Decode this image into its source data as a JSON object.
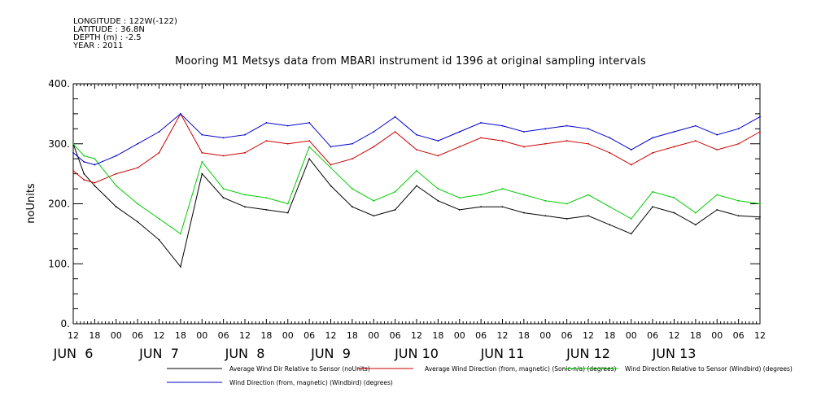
{
  "meta": {
    "longitude": "LONGITUDE : 122W(-122)",
    "latitude": "LATITUDE : 36.8N",
    "depth": "DEPTH (m) : -2.5",
    "year": "YEAR : 2011"
  },
  "chart_data": {
    "type": "line",
    "title": "Mooring M1 Metsys data from MBARI instrument id 1396 at original sampling intervals",
    "ylabel": "noUnits",
    "ylim": [
      0,
      400
    ],
    "yticks": [
      0,
      100,
      200,
      300,
      400
    ],
    "ytick_labels": [
      "0.",
      "100.",
      "200.",
      "300.",
      "400."
    ],
    "xlim_hours": [
      12,
      204
    ],
    "hour_tick_labels": [
      "12",
      "18",
      "00",
      "06",
      "12",
      "18",
      "00",
      "06",
      "12",
      "18",
      "00",
      "06",
      "12",
      "18",
      "00",
      "06",
      "12",
      "18",
      "00",
      "06",
      "12",
      "18",
      "00",
      "06",
      "12",
      "18",
      "00",
      "06",
      "12",
      "18",
      "00",
      "06",
      "12"
    ],
    "date_labels": [
      "JUN  6",
      "JUN  7",
      "JUN  8",
      "JUN  9",
      "JUN 10",
      "JUN 11",
      "JUN 12",
      "JUN 13"
    ],
    "x_unit": "hours since 2011-06-06 00:00",
    "x": [
      12,
      15,
      18,
      24,
      30,
      36,
      42,
      48,
      54,
      60,
      66,
      72,
      78,
      84,
      90,
      96,
      102,
      108,
      114,
      120,
      126,
      132,
      138,
      144,
      150,
      156,
      162,
      168,
      174,
      180,
      186,
      192,
      198,
      204
    ],
    "series": [
      {
        "name": "Average Wind Dir Relative to Sensor (noUnits)",
        "color": "#000000",
        "values": [
          300,
          250,
          230,
          195,
          170,
          140,
          95,
          250,
          210,
          195,
          190,
          185,
          275,
          230,
          195,
          180,
          190,
          230,
          205,
          190,
          195,
          195,
          185,
          180,
          175,
          180,
          165,
          150,
          195,
          185,
          165,
          190,
          180,
          178
        ]
      },
      {
        "name": "Average Wind Direction (from, magnetic) (Sonic-n/a) (degrees)",
        "color": "#cc0000",
        "values": [
          255,
          240,
          235,
          250,
          260,
          285,
          350,
          285,
          280,
          285,
          305,
          300,
          305,
          265,
          275,
          295,
          320,
          290,
          280,
          295,
          310,
          305,
          295,
          300,
          305,
          300,
          285,
          265,
          285,
          295,
          305,
          290,
          300,
          320
        ]
      },
      {
        "name": "Wind Direction Relative to Sensor (Windbird) (degrees)",
        "color": "#00cc00",
        "values": [
          300,
          280,
          275,
          230,
          200,
          175,
          150,
          270,
          225,
          215,
          210,
          200,
          295,
          260,
          225,
          205,
          220,
          255,
          225,
          210,
          215,
          225,
          215,
          205,
          200,
          215,
          195,
          175,
          220,
          210,
          185,
          215,
          205,
          200
        ]
      },
      {
        "name": "Wind Direction (from, magnetic) (Windbird) (degrees)",
        "color": "#0000cc",
        "values": [
          285,
          270,
          265,
          280,
          300,
          320,
          350,
          315,
          310,
          315,
          335,
          330,
          335,
          295,
          300,
          320,
          345,
          315,
          305,
          320,
          335,
          330,
          320,
          325,
          330,
          325,
          310,
          290,
          310,
          320,
          330,
          315,
          325,
          345
        ]
      }
    ],
    "legend": [
      {
        "label": "Average Wind Dir Relative to Sensor (noUnits)",
        "color": "#000000"
      },
      {
        "label": "Average Wind Direction (from, magnetic) (Sonic-n/a) (degrees)",
        "color": "#cc0000"
      },
      {
        "label": "Wind Direction Relative to Sensor (Windbird) (degrees)",
        "color": "#00cc00"
      },
      {
        "label": "Wind Direction (from, magnetic) (Windbird) (degrees)",
        "color": "#0000cc"
      }
    ],
    "grid": false,
    "legend_position": "bottom"
  }
}
